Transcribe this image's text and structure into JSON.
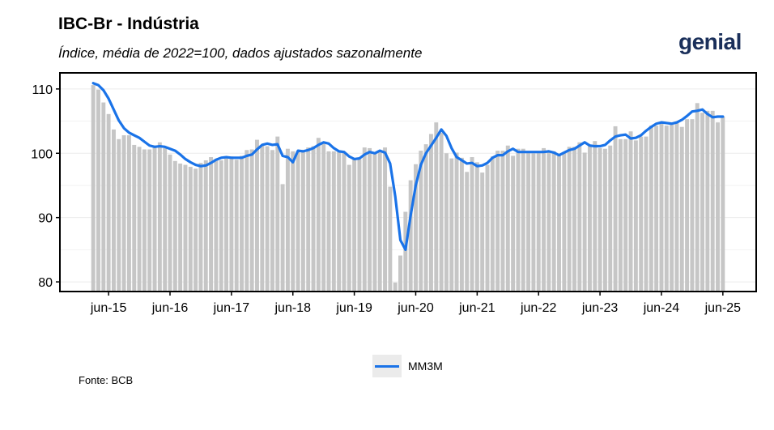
{
  "title": "IBC-Br - Indústria",
  "subtitle": "Índice, média de 2022=100, dados ajustados sazonalmente",
  "brand": "genial",
  "source": "Fonte: BCB",
  "chart_data": {
    "type": "bar",
    "x_start": "2015-03",
    "x_end": "2025-07",
    "ylim": [
      78.5,
      112.5
    ],
    "y_ticks": [
      80,
      90,
      100,
      110
    ],
    "x_tick_labels": [
      "jun-15",
      "jun-16",
      "jun-17",
      "jun-18",
      "jun-19",
      "jun-20",
      "jun-21",
      "jun-22",
      "jun-23",
      "jun-24",
      "jun-25"
    ],
    "grid": true,
    "legend_position": "bottom",
    "colors": {
      "bars": "#c6c6c6",
      "line": "#1a73e8"
    },
    "series": [
      {
        "values": [
          110.6,
          109.9,
          107.9,
          106.1,
          103.7,
          102.2,
          102.8,
          102.8,
          101.3,
          101.0,
          100.6,
          100.6,
          101.2,
          101.7,
          100.8,
          99.8,
          98.8,
          98.4,
          98.2,
          97.9,
          97.6,
          98.5,
          98.9,
          99.4,
          99.1,
          98.9,
          99.3,
          99.5,
          99.0,
          99.6,
          100.5,
          100.6,
          102.1,
          101.2,
          101.1,
          100.5,
          102.6,
          95.2,
          100.7,
          100.3,
          100.4,
          100.5,
          100.9,
          101.1,
          102.4,
          101.8,
          100.3,
          100.3,
          100.2,
          100.1,
          98.2,
          99.0,
          99.1,
          100.9,
          100.8,
          100.1,
          100.3,
          100.9,
          94.8,
          79.9,
          84.1,
          90.9,
          95.8,
          98.3,
          100.4,
          101.4,
          103.0,
          104.8,
          103.2,
          100.0,
          99.2,
          100.1,
          99.3,
          97.1,
          99.4,
          98.6,
          97.0,
          98.2,
          99.5,
          100.4,
          100.4,
          101.2,
          99.6,
          100.7,
          100.7,
          100.1,
          100.0,
          100.1,
          100.8,
          100.1,
          100.3,
          99.6,
          100.2,
          101.0,
          101.0,
          101.7,
          100.1,
          101.2,
          101.9,
          100.8,
          100.7,
          101.2,
          104.2,
          102.2,
          102.2,
          103.4,
          102.0,
          102.6,
          102.6,
          104.3,
          104.3,
          104.8,
          104.3,
          104.6,
          104.7,
          104.1,
          105.3,
          105.3,
          107.8,
          106.3,
          106.6,
          106.6,
          104.8,
          105.7
        ]
      },
      {
        "name": "MM3M",
        "values": [
          110.9,
          110.6,
          109.8,
          108.5,
          106.8,
          105.1,
          103.9,
          103.2,
          102.8,
          102.4,
          101.8,
          101.2,
          101.0,
          101.1,
          101.0,
          100.7,
          100.4,
          99.8,
          99.1,
          98.6,
          98.2,
          98.0,
          98.1,
          98.5,
          99.0,
          99.3,
          99.4,
          99.3,
          99.3,
          99.3,
          99.6,
          99.8,
          100.6,
          101.3,
          101.5,
          101.3,
          101.4,
          99.6,
          99.4,
          98.6,
          100.4,
          100.3,
          100.5,
          100.8,
          101.3,
          101.7,
          101.5,
          100.8,
          100.3,
          100.2,
          99.5,
          99.1,
          99.2,
          99.8,
          100.2,
          100.0,
          100.4,
          100.1,
          98.4,
          93.3,
          86.5,
          85.0,
          90.3,
          95.0,
          98.2,
          100.0,
          101.2,
          102.4,
          103.7,
          102.7,
          100.8,
          99.4,
          98.9,
          98.4,
          98.5,
          98.0,
          98.1,
          98.5,
          99.3,
          99.7,
          99.7,
          100.3,
          100.7,
          100.2,
          100.2,
          100.2,
          100.2,
          100.2,
          100.2,
          100.3,
          100.1,
          99.7,
          100.1,
          100.5,
          100.7,
          101.2,
          101.7,
          101.2,
          101.1,
          101.1,
          101.3,
          102.0,
          102.6,
          102.8,
          102.9,
          102.3,
          102.4,
          102.8,
          103.5,
          104.1,
          104.6,
          104.8,
          104.7,
          104.6,
          104.8,
          105.2,
          105.8,
          106.5,
          106.6,
          106.8,
          106.1,
          105.6,
          105.7,
          105.7
        ]
      }
    ]
  }
}
